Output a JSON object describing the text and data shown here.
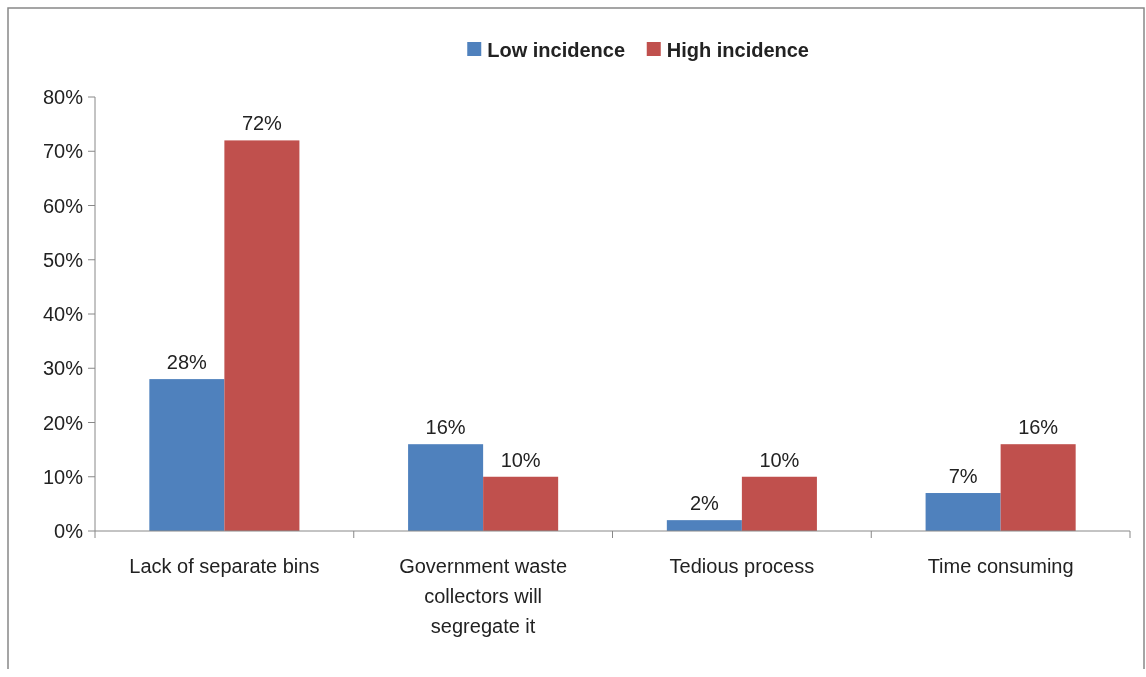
{
  "chart_data": {
    "type": "bar",
    "categories": [
      "Lack of separate bins",
      "Government waste collectors will segregate it",
      "Tedious process",
      "Time consuming"
    ],
    "series": [
      {
        "name": "Low incidence",
        "color": "#4f81bd",
        "values": [
          28,
          16,
          2,
          7
        ],
        "value_labels": [
          "28%",
          "16%",
          "2%",
          "7%"
        ]
      },
      {
        "name": "High incidence",
        "color": "#c0504d",
        "values": [
          72,
          10,
          10,
          16
        ],
        "value_labels": [
          "72%",
          "10%",
          "10%",
          "16%"
        ]
      }
    ],
    "ylim": [
      0,
      80
    ],
    "yticks": [
      {
        "value": 0,
        "label": "0%"
      },
      {
        "value": 10,
        "label": "10%"
      },
      {
        "value": 20,
        "label": "20%"
      },
      {
        "value": 30,
        "label": "30%"
      },
      {
        "value": 40,
        "label": "40%"
      },
      {
        "value": 50,
        "label": "50%"
      },
      {
        "value": 60,
        "label": "60%"
      },
      {
        "value": 70,
        "label": "70%"
      },
      {
        "value": 80,
        "label": "80%"
      }
    ],
    "grid": false,
    "legend": "top"
  }
}
